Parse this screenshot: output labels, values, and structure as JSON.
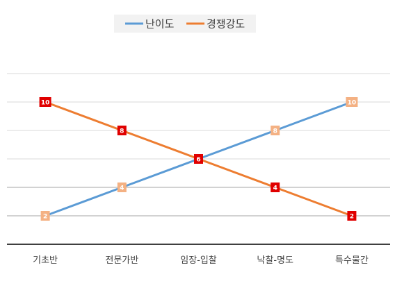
{
  "chart_data": {
    "type": "line",
    "categories": [
      "기초반",
      "전문가반",
      "임장-입찰",
      "낙찰-명도",
      "특수물간"
    ],
    "series": [
      {
        "name": "난이도",
        "values": [
          2,
          4,
          6,
          8,
          10
        ],
        "color": "#5b9bd5",
        "label_color": "#f4b183"
      },
      {
        "name": "경쟁강도",
        "values": [
          10,
          8,
          6,
          4,
          2
        ],
        "color": "#ed7d31",
        "label_color": "#e00000"
      }
    ],
    "ylim": [
      0,
      12
    ],
    "grid": true,
    "legend": "top-center",
    "data_labels": true
  }
}
